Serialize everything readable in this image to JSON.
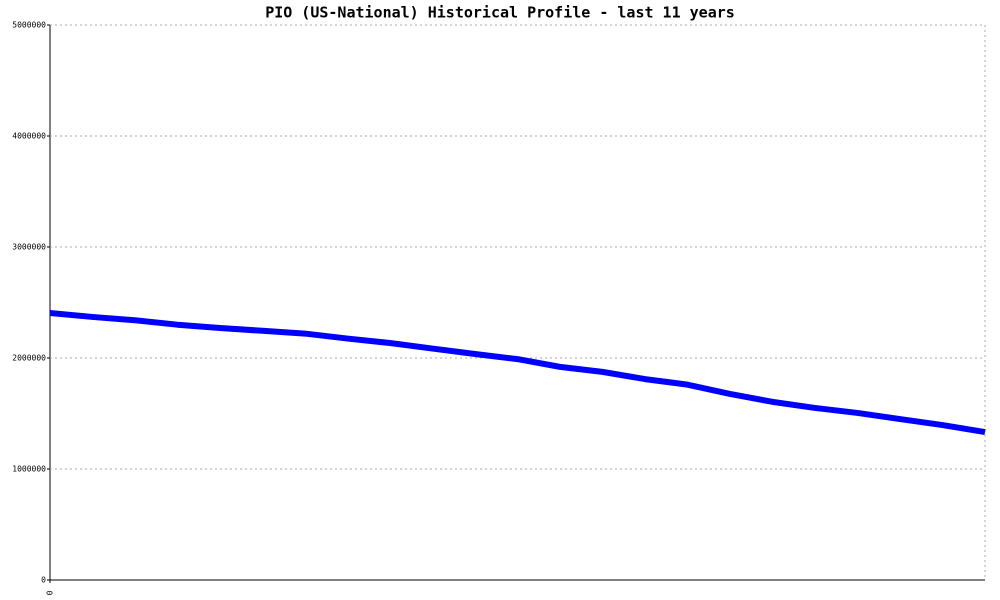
{
  "chart_data": {
    "type": "line",
    "title": "PIO (US-National) Historical Profile - last 11 years",
    "x": [
      0,
      1,
      2,
      3,
      4,
      5,
      6,
      7,
      8,
      9,
      10,
      11,
      12,
      13,
      14,
      15,
      16,
      17,
      18,
      19,
      20,
      21,
      22
    ],
    "xlim": [
      0,
      22
    ],
    "xticks": [
      0
    ],
    "series": [
      {
        "name": "PIO",
        "color": "#0000ff",
        "values": [
          2405000,
          2370000,
          2340000,
          2300000,
          2270000,
          2245000,
          2220000,
          2175000,
          2135000,
          2085000,
          2036000,
          1990000,
          1920000,
          1875000,
          1810000,
          1760000,
          1676000,
          1605000,
          1550000,
          1505000,
          1450000,
          1396000,
          1333000
        ]
      }
    ],
    "ylim": [
      0,
      5000000
    ],
    "yticks": [
      0,
      1000000,
      2000000,
      3000000,
      4000000,
      5000000
    ],
    "grid": true
  }
}
